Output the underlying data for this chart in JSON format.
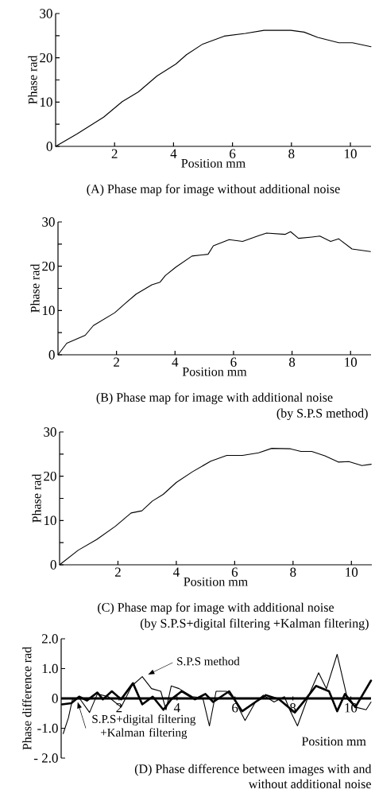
{
  "chart_data": [
    {
      "type": "line",
      "title": "(A)  Phase map for image without additional noise",
      "xlabel": "Position mm",
      "ylabel": "Phase  rad",
      "xlim": [
        0,
        10.7
      ],
      "ylim": [
        0,
        30
      ],
      "xticks": [
        2,
        4,
        6,
        8,
        10
      ],
      "yticks": [
        0,
        {
          "value": 5,
          "label": null
        },
        10,
        {
          "value": 15,
          "label": null
        },
        20,
        {
          "value": 25,
          "label": null
        },
        30
      ],
      "line_style": "solid",
      "series": [
        {
          "color": "#000000",
          "x": [
            0,
            0.72,
            1.63,
            2.26,
            2.81,
            3.44,
            4.08,
            4.44,
            4.99,
            5.72,
            6.44,
            7.07,
            7.98,
            8.43,
            8.89,
            9.61,
            10.07,
            10.7
          ],
          "values": [
            0,
            2.8,
            6.6,
            10.1,
            12.3,
            15.9,
            18.6,
            20.7,
            23.1,
            24.9,
            25.5,
            26.2,
            26.2,
            25.8,
            24.6,
            23.4,
            23.4,
            22.5
          ]
        }
      ]
    },
    {
      "type": "line",
      "title": "(B)  Phase map for image with additional noise",
      "subtitle": "(by S.P.S method)",
      "xlabel": "Position mm",
      "ylabel": "Phase  rad",
      "xlim": [
        0,
        10.7
      ],
      "ylim": [
        0,
        30
      ],
      "xticks": [
        2,
        4,
        6,
        8,
        10
      ],
      "yticks": [
        0,
        {
          "value": 5,
          "label": null
        },
        10,
        {
          "value": 15,
          "label": null
        },
        20,
        {
          "value": 25,
          "label": null
        },
        30
      ],
      "line_style": "solid",
      "series": [
        {
          "color": "#000000",
          "x": [
            0,
            0.3,
            0.93,
            1.21,
            1.94,
            2.3,
            2.67,
            3.21,
            3.49,
            3.67,
            4.03,
            4.58,
            5.13,
            5.31,
            5.85,
            6.31,
            6.86,
            7.13,
            7.77,
            7.95,
            8.22,
            8.68,
            8.95,
            9.32,
            9.59,
            10.05,
            10.68
          ],
          "values": [
            0,
            2.6,
            4.4,
            6.6,
            9.5,
            11.6,
            13.7,
            15.8,
            16.4,
            17.9,
            19.8,
            22.3,
            22.7,
            24.6,
            26.0,
            25.6,
            26.9,
            27.5,
            27.2,
            27.8,
            26.3,
            26.6,
            26.8,
            25.6,
            26.2,
            23.9,
            23.3
          ]
        }
      ]
    },
    {
      "type": "line",
      "title": "(C)  Phase map for image with additional noise",
      "subtitle": "(by S.P.S+digital filtering +Kalman filtering)",
      "xlabel": "Position mm",
      "ylabel": "Phase  rad",
      "xlim": [
        0,
        10.7
      ],
      "ylim": [
        0,
        30
      ],
      "xticks": [
        2,
        4,
        6,
        8,
        10
      ],
      "yticks": [
        0,
        {
          "value": 5,
          "label": null
        },
        10,
        {
          "value": 15,
          "label": null
        },
        20,
        {
          "value": 25,
          "label": null
        },
        30
      ],
      "line_style": "solid",
      "series": [
        {
          "color": "#000000",
          "x": [
            0,
            0.64,
            1.27,
            1.91,
            2.45,
            2.82,
            3.18,
            3.55,
            4.0,
            4.55,
            5.18,
            5.73,
            6.27,
            6.82,
            7.27,
            7.91,
            8.27,
            8.64,
            9.09,
            9.55,
            9.91,
            10.36,
            10.68
          ],
          "values": [
            0,
            3.3,
            5.7,
            8.7,
            11.7,
            12.2,
            14.4,
            15.9,
            18.6,
            21.0,
            23.4,
            24.7,
            24.7,
            25.3,
            26.3,
            26.2,
            25.6,
            25.6,
            24.6,
            23.2,
            23.3,
            22.4,
            22.7
          ]
        }
      ]
    },
    {
      "type": "line",
      "title": "(D)  Phase difference between images with and without additional noise",
      "xlabel": "Position mm",
      "ylabel": "Phase difference  rad",
      "legend": "top left",
      "xlim": [
        0,
        10.7
      ],
      "ylim": [
        -2,
        2
      ],
      "xticks": [
        2,
        4,
        6,
        8,
        10
      ],
      "yticks": [
        {
          "value": -2,
          "label": "- 2.0"
        },
        {
          "value": -1,
          "label": "-1.0"
        },
        0,
        {
          "value": 1,
          "label": "1.0"
        },
        {
          "value": 2,
          "label": "2.0"
        }
      ],
      "line_style": "solid",
      "series": [
        {
          "name": "S.P.S method",
          "color": "#000000",
          "x": [
            0.07,
            0.25,
            0.39,
            0.62,
            0.98,
            1.25,
            1.62,
            2.07,
            2.44,
            2.8,
            3.12,
            3.44,
            3.62,
            3.8,
            4.07,
            4.53,
            4.89,
            5.12,
            5.35,
            5.71,
            5.98,
            6.35,
            6.71,
            6.98,
            7.35,
            7.71,
            7.89,
            8.16,
            8.53,
            8.89,
            9.16,
            9.53,
            9.89,
            10.16,
            10.53,
            10.7
          ],
          "values": [
            -1.18,
            -0.65,
            -0.03,
            0.02,
            -0.47,
            0.15,
            0.06,
            -0.29,
            0.42,
            0.73,
            0.33,
            0.24,
            -0.38,
            0.42,
            0.33,
            0.06,
            0.02,
            -0.92,
            0.24,
            0.24,
            -0.03,
            -0.74,
            -0.12,
            0.11,
            -0.12,
            0.06,
            -0.38,
            -0.92,
            0.06,
            0.86,
            0.33,
            1.48,
            -0.03,
            -0.29,
            -0.38,
            -0.12
          ]
        },
        {
          "name": "S.P.S+digital filtering +Kalman filtering",
          "color": "#000000",
          "x": [
            0.03,
            0.35,
            0.62,
            0.89,
            1.25,
            1.44,
            1.75,
            2.07,
            2.48,
            2.8,
            3.16,
            3.53,
            3.8,
            4.16,
            4.62,
            4.98,
            5.25,
            5.8,
            6.25,
            6.71,
            7.07,
            7.53,
            8.07,
            8.44,
            8.8,
            9.25,
            9.53,
            9.8,
            10.16,
            10.7
          ],
          "values": [
            -0.2,
            -0.16,
            0.06,
            -0.07,
            0.2,
            -0.03,
            0.24,
            -0.03,
            0.51,
            -0.2,
            0.06,
            -0.38,
            -0.03,
            0.24,
            -0.03,
            0.15,
            -0.12,
            0.24,
            -0.43,
            -0.12,
            0.11,
            -0.03,
            -0.47,
            -0.03,
            0.42,
            0.24,
            -0.43,
            0.15,
            -0.29,
            0.6
          ]
        }
      ]
    }
  ]
}
